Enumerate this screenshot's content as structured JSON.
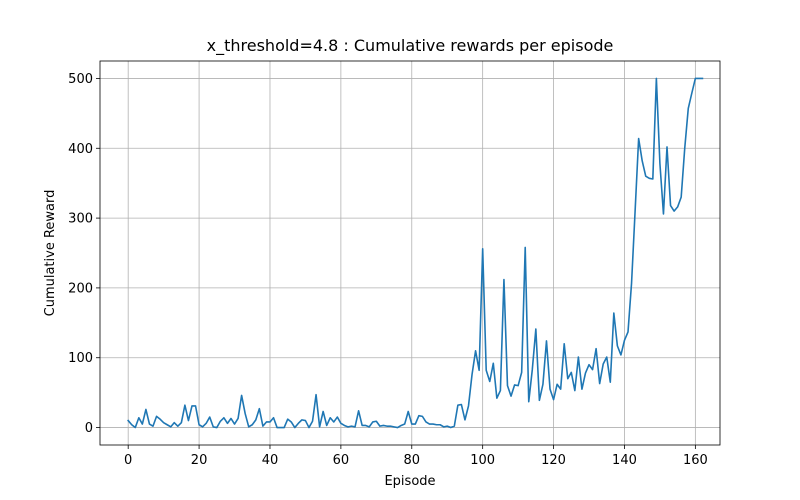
{
  "chart_data": {
    "type": "line",
    "title": "x_threshold=4.8 : Cumulative rewards per episode",
    "xlabel": "Episode",
    "ylabel": "Cumulative Reward",
    "xlim": [
      -7.95,
      166.95
    ],
    "ylim": [
      -25,
      525
    ],
    "xticks": [
      0,
      20,
      40,
      60,
      80,
      100,
      120,
      140,
      160
    ],
    "yticks": [
      0,
      100,
      200,
      300,
      400,
      500
    ],
    "grid": true,
    "line_color": "#1f77b4",
    "series": [
      {
        "values": [
          10,
          4,
          0,
          14,
          5,
          26,
          5,
          2,
          16,
          12,
          7,
          4,
          1,
          7,
          2,
          7,
          32,
          10,
          31,
          31,
          4,
          1,
          6,
          15,
          1,
          0,
          9,
          14,
          6,
          13,
          5,
          13,
          46,
          20,
          1,
          4,
          11,
          27,
          2,
          8,
          8,
          14,
          0,
          0,
          0,
          12,
          8,
          0,
          6,
          11,
          10,
          0,
          9,
          47,
          1,
          23,
          3,
          14,
          8,
          15,
          6,
          3,
          1,
          2,
          1,
          24,
          3,
          3,
          1,
          8,
          9,
          2,
          3,
          2,
          2,
          1,
          0,
          3,
          5,
          23,
          5,
          5,
          17,
          16,
          8,
          5,
          5,
          4,
          4,
          1,
          2,
          0,
          2,
          32,
          33,
          11,
          31,
          76,
          110,
          82,
          256,
          82,
          66,
          92,
          42,
          53,
          212,
          60,
          45,
          61,
          60,
          79,
          258,
          37,
          83,
          141,
          39,
          62,
          124,
          55,
          40,
          62,
          55,
          120,
          70,
          79,
          53,
          101,
          55,
          78,
          90,
          83,
          113,
          63,
          91,
          101,
          65,
          164,
          117,
          104,
          125,
          137,
          207,
          310,
          414,
          382,
          360,
          357,
          356,
          500,
          378,
          306,
          402,
          318,
          310,
          316,
          330,
          400,
          457,
          479,
          500,
          500,
          500
        ]
      }
    ]
  }
}
